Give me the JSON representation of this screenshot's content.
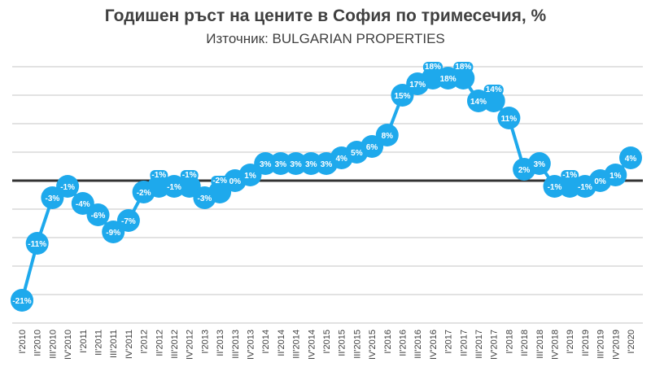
{
  "chart_data": {
    "type": "line",
    "title": "Годишен ръст на цените в София по тримесечия, %",
    "subtitle": "Източник: BULGARIAN PROPERTIES",
    "xlabel": "",
    "ylabel": "",
    "ylim": [
      -25,
      20
    ],
    "y_grid_step": 5,
    "grid": true,
    "legend": "none",
    "colors": {
      "line": "#1ea9ec",
      "zero_line": "#333333",
      "grid": "#d9d9d9"
    },
    "categories": [
      "I'2010",
      "II'2010",
      "III'2010",
      "IV'2010",
      "I'2011",
      "II'2011",
      "III'2011",
      "IV'2011",
      "I'2012",
      "II'2012",
      "III'2012",
      "IV'2012",
      "I'2013",
      "II'2013",
      "III'2013",
      "IV'2013",
      "I'2014",
      "II'2014",
      "III'2014",
      "IV'2014",
      "I'2015",
      "II'2015",
      "III'2015",
      "IV'2015",
      "I'2016",
      "II'2016",
      "III'2016",
      "IV'2016",
      "I'2017",
      "II'2017",
      "III'2017",
      "IV'2017",
      "I'2018",
      "II'2018",
      "III'2018",
      "IV'2018",
      "I'2019",
      "II'2019",
      "III'2019",
      "IV'2019",
      "I'2020"
    ],
    "values": [
      -21,
      -11,
      -3,
      -1,
      -4,
      -6,
      -9,
      -7,
      -2,
      -1,
      -1,
      -1,
      -3,
      -2,
      0,
      1,
      3,
      3,
      3,
      3,
      3,
      4,
      5,
      6,
      8,
      15,
      17,
      18,
      18,
      18,
      14,
      14,
      11,
      2,
      3,
      -1,
      -1,
      -1,
      0,
      1,
      4
    ],
    "data_labels": [
      "-21%",
      "-11%",
      "-3%",
      "-1%",
      "-4%",
      "-6%",
      "-9%",
      "-7%",
      "-2%",
      "-1%",
      "-1%",
      "-1%",
      "-3%",
      "-2%",
      "0%",
      "1%",
      "3%",
      "3%",
      "3%",
      "3%",
      "3%",
      "4%",
      "5%",
      "6%",
      "8%",
      "15%",
      "17%",
      "18%",
      "18%",
      "18%",
      "14%",
      "14%",
      "11%",
      "2%",
      "3%",
      "-1%",
      "-1%",
      "-1%",
      "0%",
      "1%",
      "4%"
    ]
  }
}
